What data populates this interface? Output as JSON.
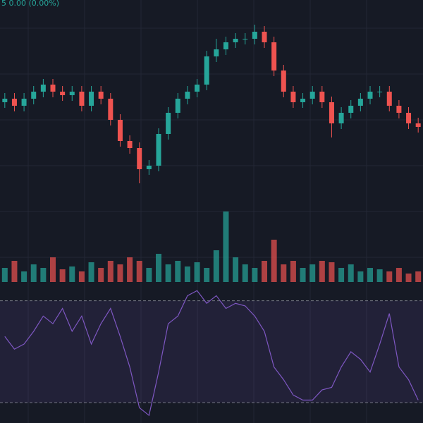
{
  "chart_data": {
    "type": "candlestick",
    "legend_text": "5  0.00 (0.00%)",
    "up_color": "#26a69a",
    "down_color": "#ef5350",
    "ylim": [
      0,
      300
    ],
    "open": [
      155,
      160,
      150,
      160,
      170,
      180,
      170,
      165,
      170,
      150,
      170,
      160,
      130,
      100,
      90,
      60,
      65,
      110,
      140,
      160,
      170,
      180,
      220,
      230,
      240,
      245,
      245,
      255,
      240,
      200,
      170,
      155,
      160,
      170,
      155,
      125,
      140,
      150,
      160,
      170,
      170,
      150,
      140,
      125
    ],
    "high": [
      168,
      168,
      168,
      178,
      188,
      188,
      178,
      178,
      178,
      178,
      178,
      168,
      138,
      108,
      98,
      73,
      118,
      148,
      168,
      178,
      188,
      228,
      245,
      248,
      253,
      253,
      265,
      263,
      248,
      208,
      178,
      168,
      178,
      178,
      163,
      148,
      158,
      168,
      178,
      178,
      178,
      158,
      148,
      133
    ],
    "low": [
      147,
      142,
      142,
      152,
      162,
      162,
      157,
      157,
      142,
      142,
      152,
      122,
      92,
      82,
      40,
      52,
      57,
      102,
      132,
      152,
      162,
      172,
      212,
      222,
      232,
      237,
      237,
      232,
      192,
      162,
      147,
      147,
      152,
      147,
      105,
      117,
      132,
      142,
      152,
      162,
      142,
      132,
      117,
      112
    ],
    "close": [
      160,
      150,
      160,
      170,
      180,
      170,
      165,
      170,
      150,
      170,
      160,
      130,
      100,
      90,
      60,
      65,
      110,
      140,
      160,
      170,
      180,
      220,
      230,
      240,
      245,
      245,
      255,
      240,
      200,
      170,
      155,
      160,
      170,
      155,
      125,
      140,
      150,
      160,
      170,
      170,
      150,
      140,
      125,
      120
    ],
    "volume_ylim": [
      0,
      110
    ],
    "volume": [
      20,
      30,
      15,
      25,
      20,
      35,
      18,
      22,
      15,
      28,
      20,
      30,
      25,
      35,
      30,
      20,
      40,
      25,
      30,
      22,
      28,
      20,
      45,
      100,
      35,
      25,
      20,
      30,
      60,
      25,
      30,
      20,
      25,
      30,
      28,
      20,
      25,
      15,
      20,
      18,
      15,
      20,
      12,
      15
    ],
    "rsi_ylim": [
      22,
      76
    ],
    "rsi_levels": [
      70,
      30
    ],
    "rsi_color": "#7e57c2",
    "rsi": [
      56,
      51,
      53,
      58,
      64,
      61,
      67,
      58,
      64,
      53,
      61,
      67,
      56,
      44,
      28,
      25,
      42,
      61,
      64,
      72,
      74,
      69,
      72,
      67,
      69,
      68,
      64,
      58,
      44,
      39,
      33,
      31,
      31,
      35,
      36,
      44,
      50,
      47,
      42,
      53,
      65,
      44,
      39,
      31
    ]
  }
}
